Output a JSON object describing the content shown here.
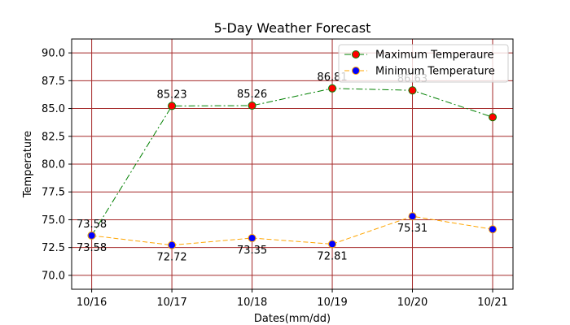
{
  "chart_data": {
    "type": "line",
    "title": "5-Day Weather Forecast",
    "xlabel": "Dates(mm/dd)",
    "ylabel": "Temperature",
    "categories": [
      "10/16",
      "10/17",
      "10/18",
      "10/19",
      "10/20",
      "10/21"
    ],
    "ylim": [
      68.75,
      91.25
    ],
    "yticks": [
      "70.0",
      "72.5",
      "75.0",
      "77.5",
      "80.0",
      "82.5",
      "85.0",
      "87.5",
      "90.0"
    ],
    "grid": true,
    "grid_color": "#a52a2a",
    "legend_position": "top-right",
    "series": [
      {
        "name": "Maximum Temperaure",
        "values": [
          73.58,
          85.23,
          85.26,
          86.81,
          86.63,
          84.22
        ],
        "labels": [
          "",
          "85.23",
          "85.26",
          "86.81",
          "86.63",
          ""
        ],
        "line_color": "#008000",
        "marker_fill": "#ff0000",
        "marker_edge": "#008000",
        "line_style": "dashdot"
      },
      {
        "name": "Minimum Temperature",
        "values": [
          73.58,
          72.72,
          73.35,
          72.81,
          75.31,
          74.14
        ],
        "labels": [
          "73.58",
          "72.72",
          "73.35",
          "72.81",
          "75.31",
          ""
        ],
        "line_color": "#ffa500",
        "marker_fill": "#0000ff",
        "marker_edge": "#ffa500",
        "line_style": "dashed"
      }
    ],
    "extra_label": "73.58"
  }
}
